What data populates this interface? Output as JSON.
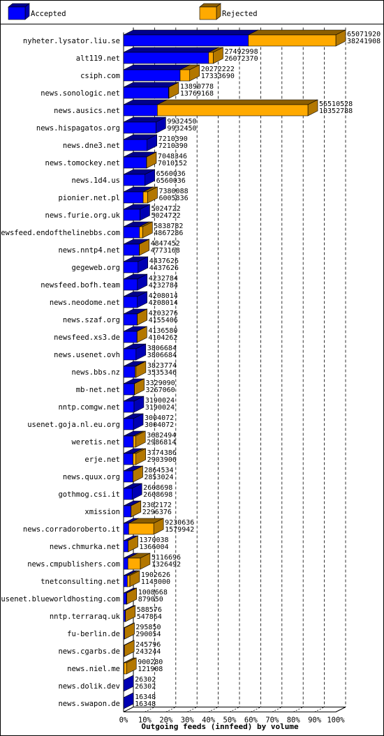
{
  "chart_data": {
    "type": "innfeed-bar",
    "x_label": "Outgoing feeds (innfeed) by volume",
    "legend": [
      {
        "name": "Accepted",
        "color": "#0000ff"
      },
      {
        "name": "Rejected",
        "color": "#ffaa00"
      }
    ],
    "xticks": [
      {
        "value": 0,
        "label": "0%"
      },
      {
        "value": 10,
        "label": "10%"
      },
      {
        "value": 20,
        "label": "20%"
      },
      {
        "value": 30,
        "label": "30%"
      },
      {
        "value": 40,
        "label": "40%"
      },
      {
        "value": 50,
        "label": "50%"
      },
      {
        "value": 60,
        "label": "60%"
      },
      {
        "value": 70,
        "label": "70%"
      },
      {
        "value": 80,
        "label": "80%"
      },
      {
        "value": 90,
        "label": "90%"
      },
      {
        "value": 100,
        "label": "100%"
      }
    ],
    "rows": [
      {
        "name": "nyheter.lysator.liu.se",
        "offered": 65071920,
        "accepted": 38241908
      },
      {
        "name": "alt119.net",
        "offered": 27492998,
        "accepted": 26072370
      },
      {
        "name": "csiph.com",
        "offered": 20272222,
        "accepted": 17333690
      },
      {
        "name": "news.sonologic.net",
        "offered": 13890778,
        "accepted": 13769168
      },
      {
        "name": "news.ausics.net",
        "offered": 56510528,
        "accepted": 10352788
      },
      {
        "name": "news.hispagatos.org",
        "offered": 9932450,
        "accepted": 9932450
      },
      {
        "name": "news.dne3.net",
        "offered": 7210390,
        "accepted": 7210390
      },
      {
        "name": "news.tomockey.net",
        "offered": 7048346,
        "accepted": 7010152
      },
      {
        "name": "news.1d4.us",
        "offered": 6560036,
        "accepted": 6560036
      },
      {
        "name": "pionier.net.pl",
        "offered": 7380088,
        "accepted": 6005836
      },
      {
        "name": "news.furie.org.uk",
        "offered": 5024722,
        "accepted": 5024722
      },
      {
        "name": "newsfeed.endofthelinebbs.com",
        "offered": 5838782,
        "accepted": 4867286
      },
      {
        "name": "news.nntp4.net",
        "offered": 4847452,
        "accepted": 4773168
      },
      {
        "name": "gegeweb.org",
        "offered": 4437626,
        "accepted": 4437626
      },
      {
        "name": "newsfeed.bofh.team",
        "offered": 4232784,
        "accepted": 4232784
      },
      {
        "name": "news.neodome.net",
        "offered": 4208014,
        "accepted": 4208014
      },
      {
        "name": "news.szaf.org",
        "offered": 4203276,
        "accepted": 4155406
      },
      {
        "name": "newsfeed.xs3.de",
        "offered": 4136580,
        "accepted": 4104262
      },
      {
        "name": "news.usenet.ovh",
        "offered": 3806684,
        "accepted": 3806684
      },
      {
        "name": "news.bbs.nz",
        "offered": 3823774,
        "accepted": 3535346
      },
      {
        "name": "mb-net.net",
        "offered": 3329090,
        "accepted": 3267060
      },
      {
        "name": "nntp.comgw.net",
        "offered": 3190024,
        "accepted": 3190024
      },
      {
        "name": "usenet.goja.nl.eu.org",
        "offered": 3004072,
        "accepted": 3004072
      },
      {
        "name": "weretis.net",
        "offered": 3682494,
        "accepted": 2986814
      },
      {
        "name": "erje.net",
        "offered": 3774386,
        "accepted": 2903906
      },
      {
        "name": "news.quux.org",
        "offered": 2864534,
        "accepted": 2853024
      },
      {
        "name": "gothmog.csi.it",
        "offered": 2608698,
        "accepted": 2608698
      },
      {
        "name": "xmission",
        "offered": 2302172,
        "accepted": 2296376
      },
      {
        "name": "news.corradoroberto.it",
        "offered": 9230636,
        "accepted": 1579942
      },
      {
        "name": "news.chmurka.net",
        "offered": 1370038,
        "accepted": 1366004
      },
      {
        "name": "news.cmpublishers.com",
        "offered": 5116696,
        "accepted": 1326492
      },
      {
        "name": "tnetconsulting.net",
        "offered": 1902626,
        "accepted": 1143000
      },
      {
        "name": "usenet.blueworldhosting.com",
        "offered": 1008668,
        "accepted": 879050
      },
      {
        "name": "nntp.terraraq.uk",
        "offered": 588576,
        "accepted": 547864
      },
      {
        "name": "fu-berlin.de",
        "offered": 295850,
        "accepted": 290054
      },
      {
        "name": "news.cgarbs.de",
        "offered": 245796,
        "accepted": 243244
      },
      {
        "name": "news.niel.me",
        "offered": 900280,
        "accepted": 121908
      },
      {
        "name": "news.dolik.dev",
        "offered": 26302,
        "accepted": 26302
      },
      {
        "name": "news.swapon.de",
        "offered": 16348,
        "accepted": 16348
      }
    ]
  }
}
